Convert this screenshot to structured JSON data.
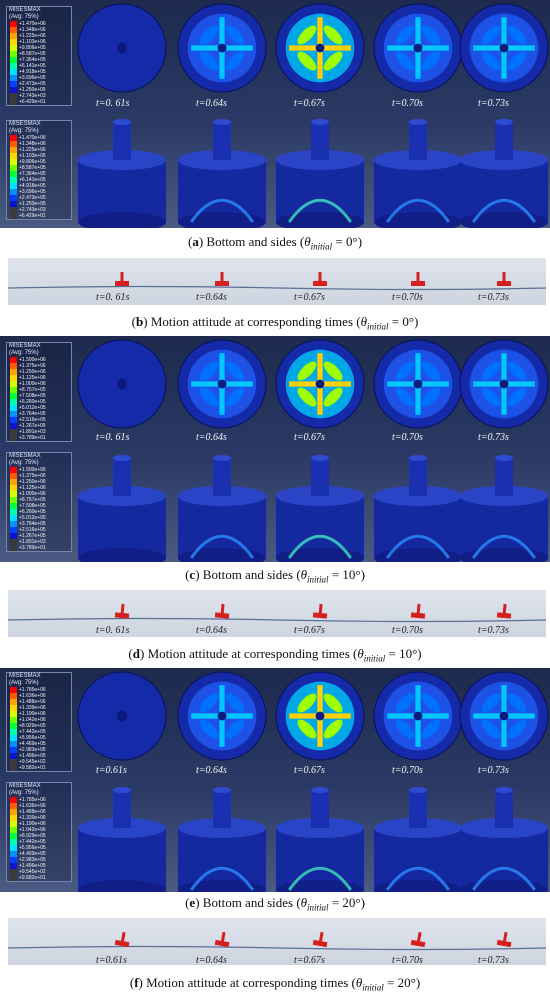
{
  "palette": [
    "#ff0000",
    "#ff5a00",
    "#ffa500",
    "#ffd700",
    "#d4ff00",
    "#6fff00",
    "#00ff37",
    "#00ffb0",
    "#00e0ff",
    "#0090ff",
    "#0040ff",
    "#0a14c8",
    "#3a3a3a"
  ],
  "sections": [
    {
      "id": "a",
      "legend_title": "MISESMAX",
      "legend_avg": "(Avg: 75%)",
      "legend_values": [
        "+1.470e+06",
        "+1.348e+06",
        "+1.225e+06",
        "+1.103e+06",
        "+9.806e+05",
        "+8.587e+05",
        "+7.364e+05",
        "+6.141e+05",
        "+4.918e+05",
        "+3.696e+05",
        "+2.473e+05",
        "+1.250e+05",
        "+2.743e+03",
        "+6.429e+01"
      ],
      "times": [
        "t=0. 61s",
        "t=0.64s",
        "t=0.67s",
        "t=0.70s",
        "t=0.73s"
      ],
      "caption_letter": "a",
      "caption_text": "Bottom and sides",
      "theta_value": "0°"
    },
    {
      "id": "b",
      "times": [
        "t=0. 61s",
        "t=0.64s",
        "t=0.67s",
        "t=0.70s",
        "t=0.73s"
      ],
      "caption_letter": "b",
      "caption_text": "Motion attitude at corresponding times",
      "theta_value": "0°"
    },
    {
      "id": "c",
      "legend_title": "MISESMAX",
      "legend_avg": "(Avg: 75%)",
      "legend_values": [
        "+1.500e+06",
        "+1.375e+06",
        "+1.250e+06",
        "+1.125e+06",
        "+1.000e+06",
        "+8.757e+05",
        "+7.508e+05",
        "+6.260e+05",
        "+5.012e+05",
        "+3.764e+05",
        "+2.516e+05",
        "+1.267e+05",
        "+1.891e+03",
        "+3.789e+01"
      ],
      "times": [
        "t=0. 61s",
        "t=0.64s",
        "t=0.67s",
        "t=0.70s",
        "t=0.73s"
      ],
      "caption_letter": "c",
      "caption_text": "Bottom and sides",
      "theta_value": "10°"
    },
    {
      "id": "d",
      "times": [
        "t=0. 61s",
        "t=0.64s",
        "t=0.67s",
        "t=0.70s",
        "t=0.73s"
      ],
      "caption_letter": "d",
      "caption_text": "Motion attitude at corresponding times",
      "theta_value": "10°"
    },
    {
      "id": "e",
      "legend_title": "MISESMAX",
      "legend_avg": "(Avg: 75%)",
      "legend_values": [
        "+1.785e+06",
        "+1.636e+06",
        "+1.488e+06",
        "+1.339e+06",
        "+1.190e+06",
        "+1.042e+06",
        "+8.929e+05",
        "+7.442e+05",
        "+5.956e+05",
        "+4.469e+05",
        "+2.983e+05",
        "+1.496e+05",
        "+9.545e+02",
        "+9.582e+01"
      ],
      "times": [
        "t=0.61s",
        "t=0.64s",
        "t=0.67s",
        "t=0.70s",
        "t=0.73s"
      ],
      "caption_letter": "e",
      "caption_text": "Bottom and sides",
      "theta_value": "20°"
    },
    {
      "id": "f",
      "times": [
        "t=0.61s",
        "t=0.64s",
        "t=0.67s",
        "t=0.70s",
        "t=0.73s"
      ],
      "caption_letter": "f",
      "caption_text": "Motion attitude at corresponding times",
      "theta_value": "20°"
    }
  ],
  "theta_symbol": "θ",
  "theta_sub": "initial"
}
